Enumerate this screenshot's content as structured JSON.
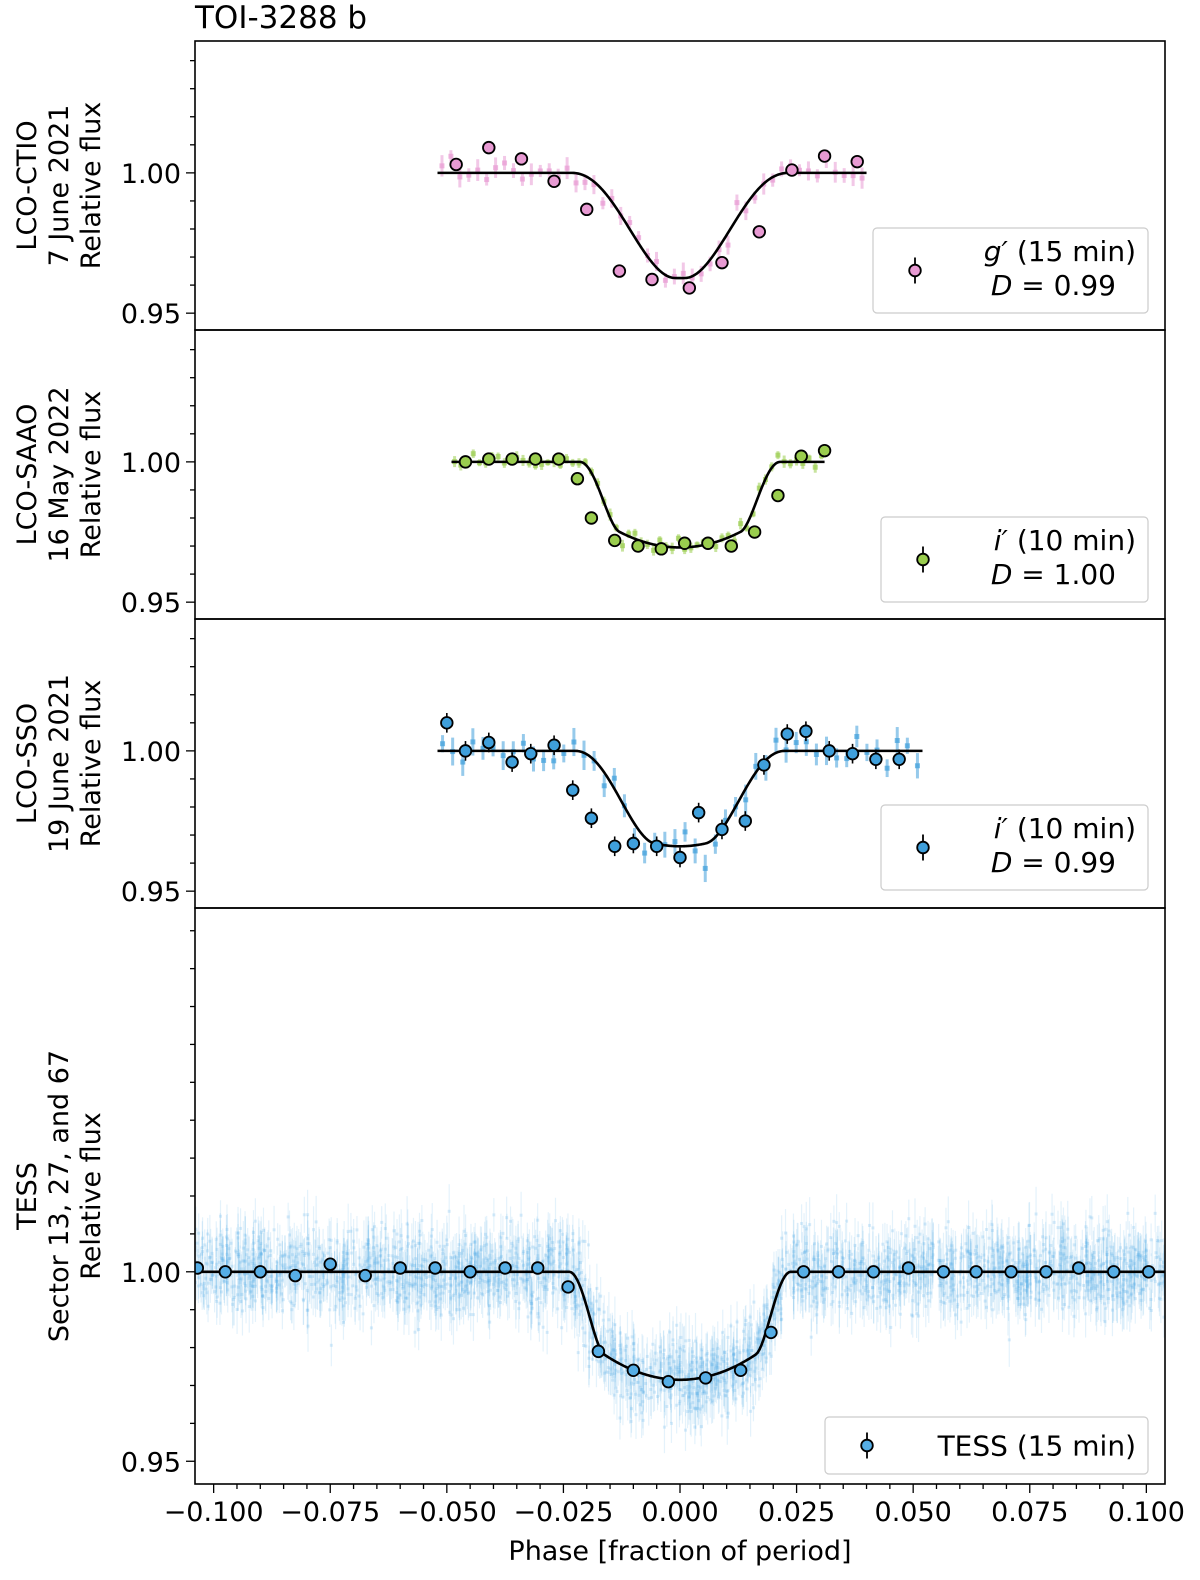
{
  "chart_data": {
    "type": "scatter",
    "title": "TOI-3288 b",
    "xlabel": "Phase [fraction of period]",
    "xlim": [
      -0.104,
      0.104
    ],
    "x_ticks": [
      -0.1,
      -0.075,
      -0.05,
      -0.025,
      0.0,
      0.025,
      0.05,
      0.075,
      0.1
    ],
    "x_tick_labels": [
      "−0.100",
      "−0.075",
      "−0.050",
      "−0.025",
      "0.000",
      "0.025",
      "0.050",
      "0.075",
      "0.100"
    ],
    "colors": {
      "g": "#e89ad3",
      "i_green": "#9acd4e",
      "i_blue": "#3f9fdb",
      "tess": "#56aee6",
      "model": "#000000"
    },
    "panels": [
      {
        "ylabel": [
          "LCO-CTIO",
          "7 June 2021",
          "Relative flux"
        ],
        "ylim": [
          0.944,
          1.047
        ],
        "y_ticks": [
          1.0,
          0.95
        ],
        "y_tick_labels": [
          "1.00",
          "0.95"
        ],
        "marker_color": "#e89ad3",
        "legend_label": "g′ (15 min)",
        "legend_label_italic": "g′",
        "legend_label_rest": " (15 min)",
        "legend_dilution": "D = 0.99",
        "legend_dilution_italic": "D",
        "legend_dilution_rest": " = 0.99",
        "model": {
          "depth": 0.0375,
          "t14": 0.0465,
          "ingress": 0.022,
          "x_range": [
            -0.052,
            0.04
          ]
        },
        "binned": {
          "x": [
            -0.048,
            -0.041,
            -0.034,
            -0.027,
            -0.02,
            -0.013,
            -0.006,
            0.002,
            0.009,
            0.017,
            0.024,
            0.031,
            0.038
          ],
          "y": [
            1.003,
            1.009,
            1.005,
            0.997,
            0.987,
            0.965,
            0.962,
            0.959,
            0.968,
            0.979,
            1.001,
            1.006,
            1.004
          ]
        }
      },
      {
        "ylabel": [
          "LCO-SAAO",
          "16 May 2022",
          "Relative flux"
        ],
        "ylim": [
          0.944,
          1.047
        ],
        "y_ticks": [
          1.0,
          0.95
        ],
        "y_tick_labels": [
          "1.00",
          "0.95"
        ],
        "marker_color": "#9acd4e",
        "legend_label": "i′ (10 min)",
        "legend_label_italic": "i′",
        "legend_label_rest": " (10 min)",
        "legend_dilution": "D = 1.00",
        "legend_dilution_italic": "D",
        "legend_dilution_rest": " = 1.00",
        "model": {
          "depth": 0.0305,
          "t14": 0.043,
          "ingress": 0.0085,
          "x_range": [
            -0.049,
            0.031
          ]
        },
        "binned": {
          "x": [
            -0.046,
            -0.041,
            -0.036,
            -0.031,
            -0.026,
            -0.022,
            -0.019,
            -0.014,
            -0.009,
            -0.004,
            0.001,
            0.006,
            0.011,
            0.016,
            0.021,
            0.026,
            0.031
          ],
          "y": [
            1.0,
            1.001,
            1.001,
            1.001,
            1.001,
            0.994,
            0.98,
            0.972,
            0.97,
            0.969,
            0.971,
            0.971,
            0.97,
            0.975,
            0.988,
            1.002,
            1.004
          ]
        }
      },
      {
        "ylabel": [
          "LCO-SSO",
          "19 June 2021",
          "Relative flux"
        ],
        "ylim": [
          0.944,
          1.047
        ],
        "y_ticks": [
          1.0,
          0.95
        ],
        "y_tick_labels": [
          "1.00",
          "0.95"
        ],
        "marker_color": "#3f9fdb",
        "legend_label": "i′ (10 min)",
        "legend_label_italic": "i′",
        "legend_label_rest": " (10 min)",
        "legend_dilution": "D = 0.99",
        "legend_dilution_italic": "D",
        "legend_dilution_rest": " = 0.99",
        "model": {
          "depth": 0.034,
          "t14": 0.045,
          "ingress": 0.017,
          "x_range": [
            -0.052,
            0.052
          ]
        },
        "binned": {
          "x": [
            -0.05,
            -0.046,
            -0.041,
            -0.036,
            -0.032,
            -0.027,
            -0.023,
            -0.019,
            -0.014,
            -0.01,
            -0.005,
            0.0,
            0.004,
            0.009,
            0.014,
            0.018,
            0.023,
            0.027,
            0.032,
            0.037,
            0.042,
            0.047
          ],
          "y": [
            1.01,
            1.0,
            1.003,
            0.996,
            0.999,
            1.002,
            0.986,
            0.976,
            0.966,
            0.967,
            0.966,
            0.962,
            0.978,
            0.972,
            0.975,
            0.995,
            1.006,
            1.007,
            1.0,
            0.999,
            0.997,
            0.997
          ]
        }
      },
      {
        "ylabel": [
          "TESS",
          "Sector 13, 27, and 67",
          "Relative flux"
        ],
        "ylim": [
          0.944,
          1.096
        ],
        "y_ticks": [
          1.0,
          0.95
        ],
        "y_tick_labels": [
          "1.00",
          "0.95"
        ],
        "marker_color": "#56aee6",
        "legend_label": "TESS (15 min)",
        "model": {
          "depth": 0.0285,
          "t14": 0.0475,
          "ingress": 0.0075,
          "x_range": [
            -0.104,
            0.104
          ]
        },
        "binned": {
          "x": [
            -0.1035,
            -0.0975,
            -0.09,
            -0.0825,
            -0.075,
            -0.0675,
            -0.06,
            -0.0525,
            -0.045,
            -0.0375,
            -0.0305,
            -0.024,
            -0.0175,
            -0.01,
            -0.0025,
            0.0055,
            0.013,
            0.0195,
            0.0265,
            0.034,
            0.0415,
            0.049,
            0.0565,
            0.0635,
            0.071,
            0.0785,
            0.0855,
            0.093,
            0.1005
          ],
          "y": [
            1.001,
            1.0,
            1.0,
            0.999,
            1.002,
            0.999,
            1.001,
            1.001,
            1.0,
            1.001,
            1.001,
            0.996,
            0.979,
            0.974,
            0.971,
            0.972,
            0.974,
            0.984,
            1.0,
            1.0,
            1.0,
            1.001,
            1.0,
            1.0,
            1.0,
            1.0,
            1.001,
            1.0,
            1.0
          ]
        }
      }
    ]
  }
}
